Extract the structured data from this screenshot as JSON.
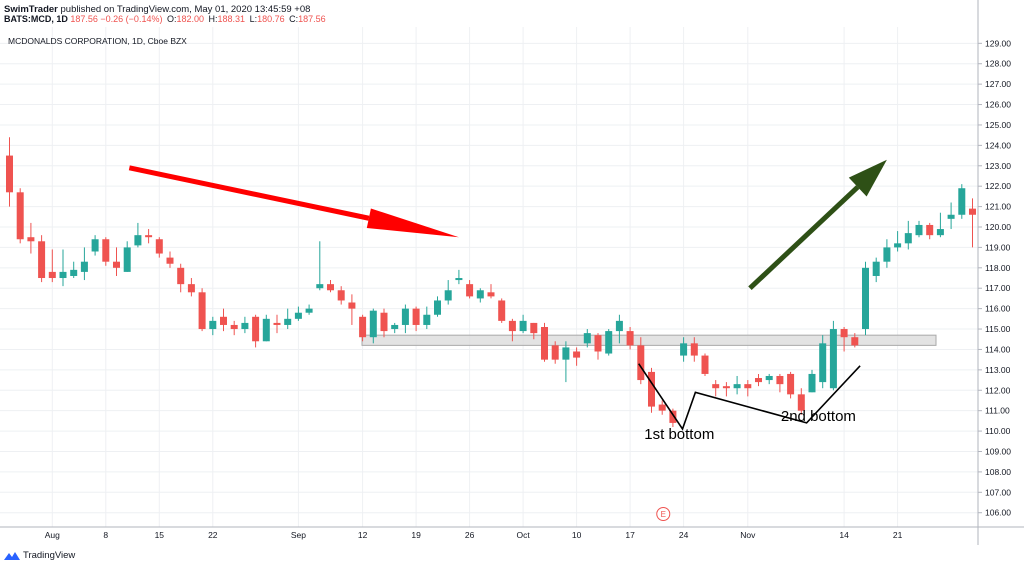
{
  "header": {
    "author": "SwimTrader",
    "published_text": "published on TradingView.com, May 01, 2020 13:45:59 +08",
    "symbol": "BATS:MCD, 1D",
    "last": "187.56",
    "change": "−0.26 (−0.14%)",
    "o_label": "O:",
    "o_value": "182.00",
    "h_label": "H:",
    "h_value": "188.31",
    "l_label": "L:",
    "l_value": "180.76",
    "c_label": "C:",
    "c_value": "187.56"
  },
  "footer": {
    "brand": "TradingView",
    "logo_icon": "tradingview-logo-icon"
  },
  "colors": {
    "up": "#26a69a",
    "down": "#ef5350",
    "grid": "#eef0f3",
    "red_arrow": "#ff0000",
    "green_arrow": "#2e5016",
    "support_band": "#d9d9d9",
    "pattern_line": "#000000"
  },
  "chart_data": {
    "type": "candlestick",
    "title": "MCDONALDS CORPORATION, 1D, Cboe BZX",
    "ylim": [
      105.3,
      129.8
    ],
    "y_ticks": [
      "106.00",
      "107.00",
      "108.00",
      "109.00",
      "110.00",
      "111.00",
      "112.00",
      "113.00",
      "114.00",
      "115.00",
      "116.00",
      "117.00",
      "118.00",
      "119.00",
      "120.00",
      "121.00",
      "122.00",
      "123.00",
      "124.00",
      "125.00",
      "126.00",
      "127.00",
      "128.00",
      "129.00"
    ],
    "x_ticks": [
      {
        "label": "Aug",
        "i": 4
      },
      {
        "label": "8",
        "i": 9
      },
      {
        "label": "15",
        "i": 14
      },
      {
        "label": "22",
        "i": 19
      },
      {
        "label": "Sep",
        "i": 27
      },
      {
        "label": "12",
        "i": 33
      },
      {
        "label": "19",
        "i": 38
      },
      {
        "label": "26",
        "i": 43
      },
      {
        "label": "Oct",
        "i": 48
      },
      {
        "label": "10",
        "i": 53
      },
      {
        "label": "17",
        "i": 58
      },
      {
        "label": "24",
        "i": 63
      },
      {
        "label": "Nov",
        "i": 69
      },
      {
        "label": "14",
        "i": 78
      },
      {
        "label": "21",
        "i": 83
      }
    ],
    "candles": [
      [
        123.5,
        121.7,
        124.4,
        121.0
      ],
      [
        121.7,
        119.4,
        121.9,
        119.2
      ],
      [
        119.5,
        119.3,
        120.2,
        118.7
      ],
      [
        119.3,
        117.5,
        119.6,
        117.3
      ],
      [
        117.8,
        117.5,
        118.9,
        117.3
      ],
      [
        117.5,
        117.8,
        118.9,
        117.1
      ],
      [
        117.6,
        117.9,
        118.3,
        117.5
      ],
      [
        117.8,
        118.3,
        119.0,
        117.4
      ],
      [
        118.8,
        119.4,
        119.6,
        118.6
      ],
      [
        119.4,
        118.3,
        119.5,
        118.1
      ],
      [
        118.3,
        118.0,
        119.0,
        117.6
      ],
      [
        117.8,
        119.0,
        119.3,
        117.8
      ],
      [
        119.1,
        119.6,
        120.2,
        119.0
      ],
      [
        119.6,
        119.5,
        119.9,
        119.2
      ],
      [
        119.4,
        118.7,
        119.5,
        118.5
      ],
      [
        118.5,
        118.2,
        118.8,
        118.0
      ],
      [
        118.0,
        117.2,
        118.2,
        116.8
      ],
      [
        117.2,
        116.8,
        117.5,
        116.6
      ],
      [
        116.8,
        115.0,
        117.0,
        114.9
      ],
      [
        115.0,
        115.4,
        115.6,
        114.7
      ],
      [
        115.6,
        115.2,
        116.0,
        114.9
      ],
      [
        115.2,
        115.0,
        115.4,
        114.7
      ],
      [
        115.0,
        115.3,
        115.6,
        114.8
      ],
      [
        115.6,
        114.4,
        115.7,
        114.1
      ],
      [
        114.4,
        115.5,
        115.7,
        114.4
      ],
      [
        115.3,
        115.2,
        115.7,
        114.8
      ],
      [
        115.2,
        115.5,
        116.0,
        115.0
      ],
      [
        115.5,
        115.8,
        116.1,
        115.4
      ],
      [
        115.8,
        116.0,
        116.2,
        115.7
      ],
      [
        117.0,
        117.2,
        119.3,
        116.9
      ],
      [
        117.2,
        116.9,
        117.4,
        116.8
      ],
      [
        116.9,
        116.4,
        117.1,
        116.2
      ],
      [
        116.3,
        116.0,
        116.7,
        115.2
      ],
      [
        115.6,
        114.6,
        115.7,
        114.4
      ],
      [
        114.6,
        115.9,
        116.0,
        114.3
      ],
      [
        115.8,
        114.9,
        116.0,
        114.6
      ],
      [
        115.0,
        115.2,
        115.3,
        114.8
      ],
      [
        115.2,
        116.0,
        116.2,
        114.8
      ],
      [
        116.0,
        115.2,
        116.1,
        114.9
      ],
      [
        115.2,
        115.7,
        116.1,
        115.0
      ],
      [
        115.7,
        116.4,
        116.6,
        115.6
      ],
      [
        116.4,
        116.9,
        117.4,
        116.2
      ],
      [
        117.4,
        117.5,
        117.9,
        117.2
      ],
      [
        117.2,
        116.6,
        117.4,
        116.5
      ],
      [
        116.5,
        116.9,
        117.0,
        116.3
      ],
      [
        116.8,
        116.6,
        117.2,
        116.5
      ],
      [
        116.4,
        115.4,
        116.5,
        115.3
      ],
      [
        115.4,
        114.9,
        115.5,
        114.4
      ],
      [
        114.9,
        115.4,
        115.7,
        114.8
      ],
      [
        115.3,
        114.8,
        115.3,
        114.5
      ],
      [
        115.1,
        113.5,
        115.3,
        113.4
      ],
      [
        114.2,
        113.5,
        114.4,
        113.3
      ],
      [
        113.5,
        114.1,
        114.4,
        112.4
      ],
      [
        113.9,
        113.6,
        114.1,
        113.2
      ],
      [
        114.3,
        114.8,
        115.0,
        114.1
      ],
      [
        114.7,
        113.9,
        114.8,
        113.5
      ],
      [
        113.8,
        114.9,
        115.0,
        113.7
      ],
      [
        114.9,
        115.4,
        115.7,
        114.3
      ],
      [
        114.9,
        114.2,
        115.1,
        114.0
      ],
      [
        114.2,
        112.5,
        114.6,
        112.3
      ],
      [
        112.9,
        111.2,
        113.1,
        110.9
      ],
      [
        111.3,
        111.0,
        111.5,
        110.8
      ],
      [
        111.0,
        110.4,
        111.1,
        110.2
      ],
      [
        113.7,
        114.3,
        114.6,
        113.4
      ],
      [
        114.3,
        113.7,
        114.6,
        113.4
      ],
      [
        113.7,
        112.8,
        113.8,
        112.7
      ],
      [
        112.3,
        112.1,
        112.5,
        111.7
      ],
      [
        112.2,
        112.1,
        112.4,
        111.7
      ],
      [
        112.1,
        112.3,
        112.7,
        111.8
      ],
      [
        112.3,
        112.1,
        112.5,
        111.7
      ],
      [
        112.6,
        112.4,
        112.8,
        112.2
      ],
      [
        112.5,
        112.7,
        112.8,
        112.3
      ],
      [
        112.7,
        112.3,
        112.8,
        111.9
      ],
      [
        112.8,
        111.8,
        112.9,
        111.6
      ],
      [
        111.8,
        111.0,
        112.1,
        110.8
      ],
      [
        111.9,
        112.8,
        113.0,
        111.9
      ],
      [
        112.4,
        114.3,
        114.7,
        112.1
      ],
      [
        112.1,
        115.0,
        115.4,
        112.0
      ],
      [
        115.0,
        114.6,
        115.1,
        113.9
      ],
      [
        114.6,
        114.2,
        114.8,
        114.1
      ],
      [
        115.0,
        118.0,
        118.3,
        114.7
      ],
      [
        117.6,
        118.3,
        118.5,
        117.3
      ],
      [
        118.3,
        119.0,
        119.4,
        118.0
      ],
      [
        119.0,
        119.2,
        119.8,
        118.8
      ],
      [
        119.2,
        119.7,
        120.3,
        118.9
      ],
      [
        119.6,
        120.1,
        120.3,
        119.5
      ],
      [
        120.1,
        119.6,
        120.2,
        119.4
      ],
      [
        119.6,
        119.9,
        120.7,
        119.5
      ],
      [
        120.4,
        120.6,
        121.2,
        119.9
      ],
      [
        120.6,
        121.9,
        122.1,
        120.4
      ],
      [
        120.9,
        120.6,
        121.4,
        119.0
      ]
    ],
    "support_zone": [
      114.2,
      114.7
    ],
    "annotations": [
      {
        "id": "first-bottom",
        "text": "1st bottom",
        "i": 62.6,
        "y": 109.6
      },
      {
        "id": "second-bottom",
        "text": "2nd bottom",
        "i": 75.6,
        "y": 110.5
      }
    ],
    "pattern_points": [
      [
        58.8,
        113.3
      ],
      [
        62.9,
        110.1
      ],
      [
        64.1,
        111.9
      ],
      [
        74.5,
        110.4
      ],
      [
        79.5,
        113.2
      ]
    ],
    "red_arrow": [
      [
        11.2,
        122.9
      ],
      [
        42.0,
        119.5
      ]
    ],
    "green_arrow": [
      [
        69.2,
        117.0
      ],
      [
        82.0,
        123.3
      ]
    ],
    "event_marker": {
      "text": "E",
      "i": 61.1
    }
  }
}
